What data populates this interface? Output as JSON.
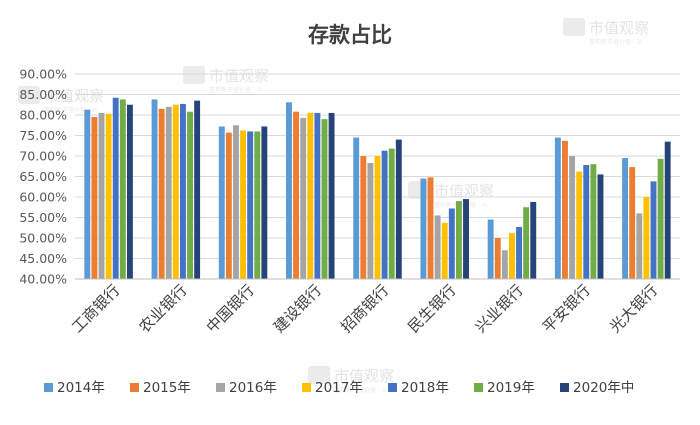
{
  "chart_data": {
    "type": "bar",
    "title": "存款占比",
    "xlabel": "",
    "ylabel": "",
    "ylim": [
      0.4,
      0.9
    ],
    "yticks": [
      "40.00%",
      "45.00%",
      "50.00%",
      "55.00%",
      "60.00%",
      "65.00%",
      "70.00%",
      "75.00%",
      "80.00%",
      "85.00%",
      "90.00%"
    ],
    "categories": [
      "工商银行",
      "农业银行",
      "中国银行",
      "建设银行",
      "招商银行",
      "民生银行",
      "兴业银行",
      "平安银行",
      "光大银行"
    ],
    "legend_position": "bottom",
    "grid": true,
    "series": [
      {
        "name": "2014年",
        "color": "#5b9bd5",
        "values": [
          0.813,
          0.838,
          0.772,
          0.831,
          0.745,
          0.645,
          0.545,
          0.745,
          0.695
        ]
      },
      {
        "name": "2015年",
        "color": "#ed7d31",
        "values": [
          0.795,
          0.815,
          0.757,
          0.808,
          0.7,
          0.648,
          0.5,
          0.737,
          0.673
        ]
      },
      {
        "name": "2016年",
        "color": "#a5a5a5",
        "values": [
          0.805,
          0.82,
          0.775,
          0.793,
          0.683,
          0.555,
          0.47,
          0.7,
          0.56
        ]
      },
      {
        "name": "2017年",
        "color": "#ffc000",
        "values": [
          0.803,
          0.825,
          0.762,
          0.805,
          0.7,
          0.537,
          0.512,
          0.662,
          0.6
        ]
      },
      {
        "name": "2018年",
        "color": "#4472c4",
        "values": [
          0.842,
          0.827,
          0.76,
          0.805,
          0.713,
          0.572,
          0.527,
          0.678,
          0.638
        ]
      },
      {
        "name": "2019年",
        "color": "#70ad47",
        "values": [
          0.838,
          0.808,
          0.76,
          0.79,
          0.718,
          0.59,
          0.575,
          0.68,
          0.693
        ]
      },
      {
        "name": "2020年中",
        "color": "#264478",
        "values": [
          0.825,
          0.835,
          0.772,
          0.805,
          0.74,
          0.595,
          0.588,
          0.655,
          0.735
        ]
      }
    ]
  },
  "watermark": {
    "text": "市值观察",
    "subtext": "重构新市值价值 · 从"
  }
}
